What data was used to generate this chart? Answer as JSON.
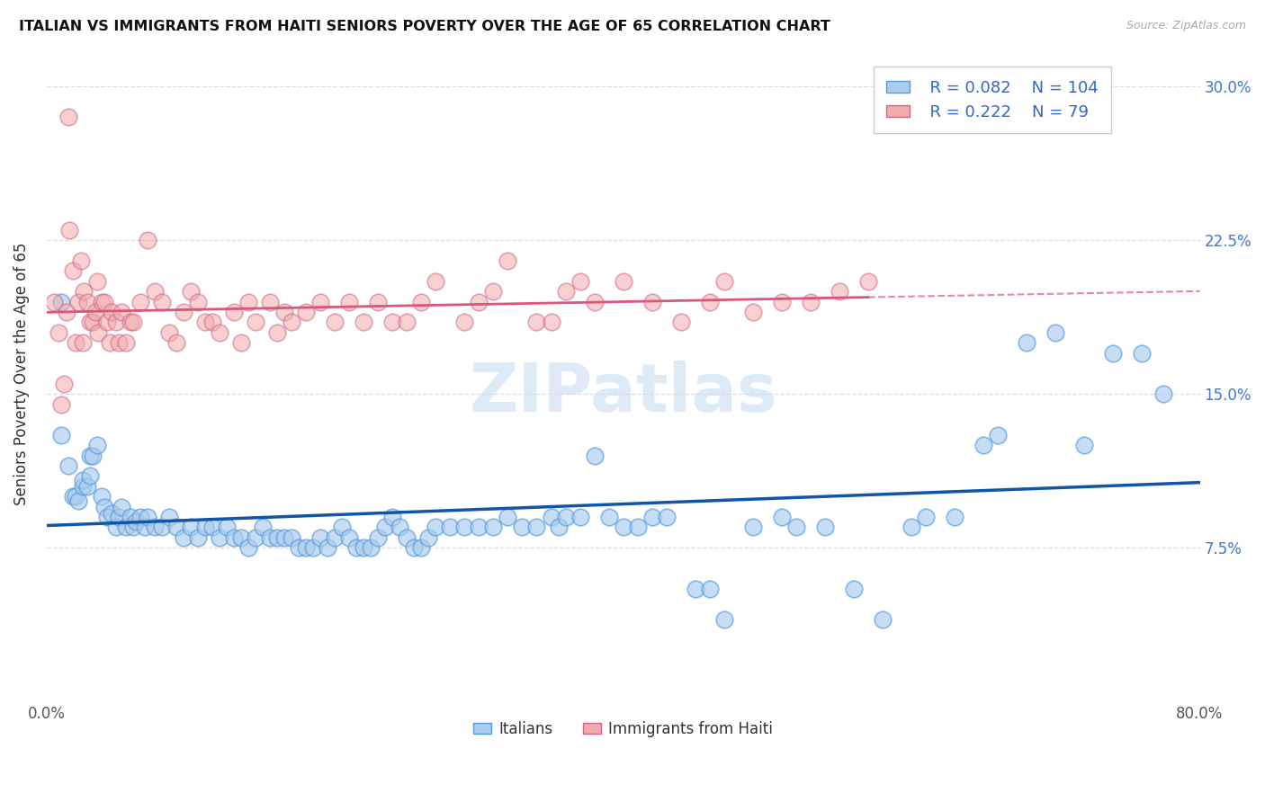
{
  "title": "ITALIAN VS IMMIGRANTS FROM HAITI SENIORS POVERTY OVER THE AGE OF 65 CORRELATION CHART",
  "source": "Source: ZipAtlas.com",
  "ylabel": "Seniors Poverty Over the Age of 65",
  "xlim": [
    0.0,
    0.8
  ],
  "ylim": [
    0.0,
    0.32
  ],
  "color_italian_fill": "#aaccee",
  "color_italian_edge": "#5599dd",
  "color_haiti_fill": "#f4aaaa",
  "color_haiti_edge": "#cc6688",
  "color_italian_line": "#1155aa",
  "color_haiti_line": "#dd5577",
  "watermark_color": "#c8dff0",
  "italian_x": [
    0.01,
    0.01,
    0.015,
    0.018,
    0.02,
    0.022,
    0.025,
    0.025,
    0.028,
    0.03,
    0.03,
    0.032,
    0.035,
    0.038,
    0.04,
    0.042,
    0.045,
    0.048,
    0.05,
    0.052,
    0.055,
    0.058,
    0.06,
    0.062,
    0.065,
    0.068,
    0.07,
    0.075,
    0.08,
    0.085,
    0.09,
    0.095,
    0.1,
    0.105,
    0.11,
    0.115,
    0.12,
    0.125,
    0.13,
    0.135,
    0.14,
    0.145,
    0.15,
    0.155,
    0.16,
    0.165,
    0.17,
    0.175,
    0.18,
    0.185,
    0.19,
    0.195,
    0.2,
    0.205,
    0.21,
    0.215,
    0.22,
    0.225,
    0.23,
    0.235,
    0.24,
    0.245,
    0.25,
    0.255,
    0.26,
    0.265,
    0.27,
    0.28,
    0.29,
    0.3,
    0.31,
    0.32,
    0.33,
    0.34,
    0.35,
    0.355,
    0.36,
    0.37,
    0.38,
    0.39,
    0.4,
    0.41,
    0.42,
    0.43,
    0.45,
    0.46,
    0.47,
    0.49,
    0.51,
    0.52,
    0.54,
    0.56,
    0.58,
    0.6,
    0.61,
    0.63,
    0.65,
    0.66,
    0.68,
    0.7,
    0.72,
    0.74,
    0.76,
    0.775
  ],
  "italian_y": [
    0.195,
    0.13,
    0.115,
    0.1,
    0.1,
    0.098,
    0.105,
    0.108,
    0.105,
    0.11,
    0.12,
    0.12,
    0.125,
    0.1,
    0.095,
    0.09,
    0.092,
    0.085,
    0.09,
    0.095,
    0.085,
    0.09,
    0.085,
    0.088,
    0.09,
    0.085,
    0.09,
    0.085,
    0.085,
    0.09,
    0.085,
    0.08,
    0.085,
    0.08,
    0.085,
    0.085,
    0.08,
    0.085,
    0.08,
    0.08,
    0.075,
    0.08,
    0.085,
    0.08,
    0.08,
    0.08,
    0.08,
    0.075,
    0.075,
    0.075,
    0.08,
    0.075,
    0.08,
    0.085,
    0.08,
    0.075,
    0.075,
    0.075,
    0.08,
    0.085,
    0.09,
    0.085,
    0.08,
    0.075,
    0.075,
    0.08,
    0.085,
    0.085,
    0.085,
    0.085,
    0.085,
    0.09,
    0.085,
    0.085,
    0.09,
    0.085,
    0.09,
    0.09,
    0.12,
    0.09,
    0.085,
    0.085,
    0.09,
    0.09,
    0.055,
    0.055,
    0.04,
    0.085,
    0.09,
    0.085,
    0.085,
    0.055,
    0.04,
    0.085,
    0.09,
    0.09,
    0.125,
    0.13,
    0.175,
    0.18,
    0.125,
    0.17,
    0.17,
    0.15
  ],
  "haiti_x": [
    0.005,
    0.008,
    0.01,
    0.012,
    0.014,
    0.015,
    0.016,
    0.018,
    0.02,
    0.022,
    0.024,
    0.025,
    0.026,
    0.028,
    0.03,
    0.032,
    0.034,
    0.035,
    0.036,
    0.038,
    0.04,
    0.042,
    0.044,
    0.045,
    0.048,
    0.05,
    0.052,
    0.055,
    0.058,
    0.06,
    0.065,
    0.07,
    0.075,
    0.08,
    0.085,
    0.09,
    0.095,
    0.1,
    0.105,
    0.11,
    0.115,
    0.12,
    0.13,
    0.135,
    0.14,
    0.145,
    0.155,
    0.16,
    0.165,
    0.17,
    0.18,
    0.19,
    0.2,
    0.21,
    0.22,
    0.23,
    0.24,
    0.25,
    0.26,
    0.27,
    0.29,
    0.3,
    0.31,
    0.32,
    0.34,
    0.35,
    0.36,
    0.37,
    0.38,
    0.4,
    0.42,
    0.44,
    0.46,
    0.47,
    0.49,
    0.51,
    0.53,
    0.55,
    0.57
  ],
  "haiti_y": [
    0.195,
    0.18,
    0.145,
    0.155,
    0.19,
    0.285,
    0.23,
    0.21,
    0.175,
    0.195,
    0.215,
    0.175,
    0.2,
    0.195,
    0.185,
    0.185,
    0.19,
    0.205,
    0.18,
    0.195,
    0.195,
    0.185,
    0.175,
    0.19,
    0.185,
    0.175,
    0.19,
    0.175,
    0.185,
    0.185,
    0.195,
    0.225,
    0.2,
    0.195,
    0.18,
    0.175,
    0.19,
    0.2,
    0.195,
    0.185,
    0.185,
    0.18,
    0.19,
    0.175,
    0.195,
    0.185,
    0.195,
    0.18,
    0.19,
    0.185,
    0.19,
    0.195,
    0.185,
    0.195,
    0.185,
    0.195,
    0.185,
    0.185,
    0.195,
    0.205,
    0.185,
    0.195,
    0.2,
    0.215,
    0.185,
    0.185,
    0.2,
    0.205,
    0.195,
    0.205,
    0.195,
    0.185,
    0.195,
    0.205,
    0.19,
    0.195,
    0.195,
    0.2,
    0.205
  ]
}
